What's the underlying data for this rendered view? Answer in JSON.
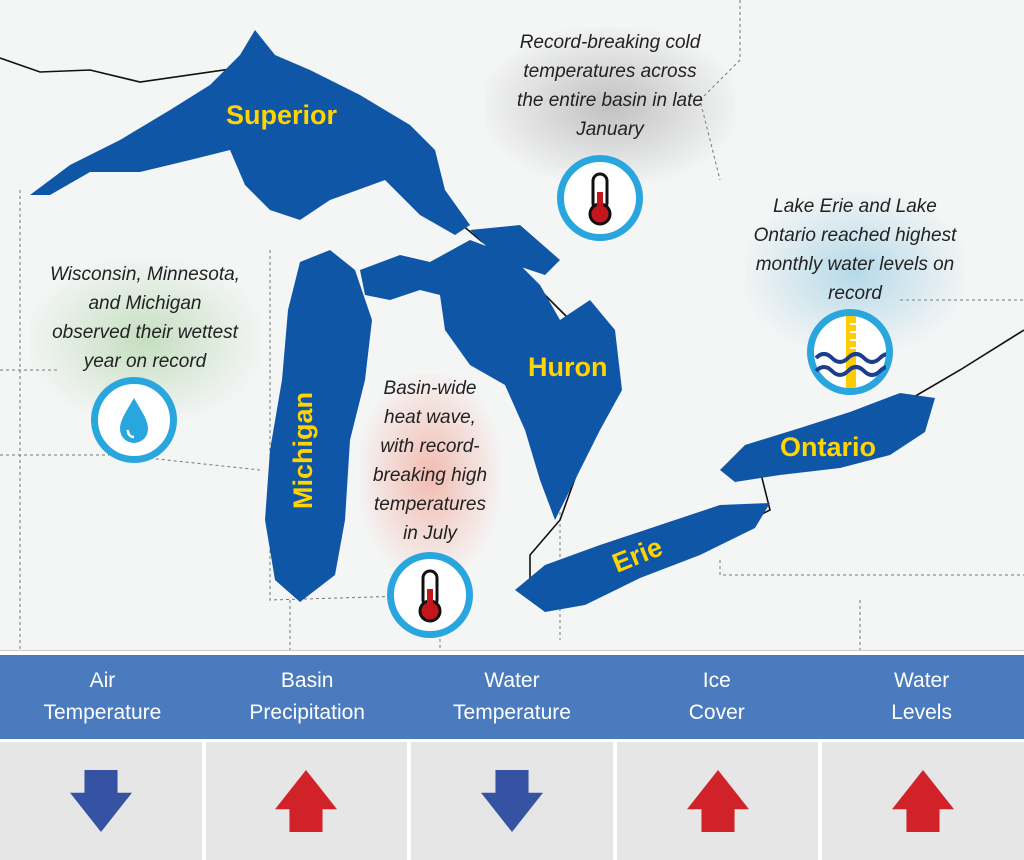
{
  "map": {
    "lakes": [
      {
        "name": "Superior"
      },
      {
        "name": "Michigan"
      },
      {
        "name": "Huron"
      },
      {
        "name": "Erie"
      },
      {
        "name": "Ontario"
      }
    ],
    "lake_color": "#0f56a6",
    "label_color": "#ffd400",
    "callouts": [
      {
        "lines": [
          "Record-breaking cold",
          "temperatures across",
          "the entire basin in late",
          "January"
        ],
        "icon": "thermometer-icon"
      },
      {
        "lines": [
          "Lake Erie and Lake",
          "Ontario reached highest",
          "monthly water levels on",
          "record"
        ],
        "icon": "water-level-icon"
      },
      {
        "lines": [
          "Wisconsin, Minnesota,",
          "and Michigan",
          "observed their wettest",
          "year on record"
        ],
        "icon": "water-drop-icon"
      },
      {
        "lines": [
          "Basin-wide",
          "heat wave,",
          "with record-",
          "breaking high",
          "temperatures",
          "in July"
        ],
        "icon": "thermometer-icon"
      }
    ]
  },
  "indicators": [
    {
      "line1": "Air",
      "line2": "Temperature",
      "trend": "down",
      "color": "#3652a3"
    },
    {
      "line1": "Basin",
      "line2": "Precipitation",
      "trend": "up",
      "color": "#d22229"
    },
    {
      "line1": "Water",
      "line2": "Temperature",
      "trend": "down",
      "color": "#3652a3"
    },
    {
      "line1": "Ice",
      "line2": "Cover",
      "trend": "up",
      "color": "#d22229"
    },
    {
      "line1": "Water",
      "line2": "Levels",
      "trend": "up",
      "color": "#d22229"
    }
  ]
}
